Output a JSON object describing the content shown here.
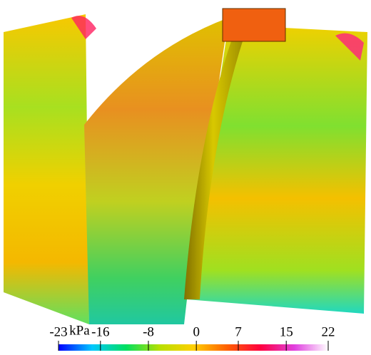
{
  "colorbar": {
    "unit": "kPa",
    "range": [
      -23,
      22
    ],
    "ticks": [
      -23,
      -16,
      -8,
      0,
      7,
      15,
      22
    ],
    "colors": [
      "#0000ff",
      "#00c8ff",
      "#00e060",
      "#b8e000",
      "#ffd000",
      "#ff6000",
      "#ff0040",
      "#e040e0",
      "#ffffff"
    ]
  }
}
